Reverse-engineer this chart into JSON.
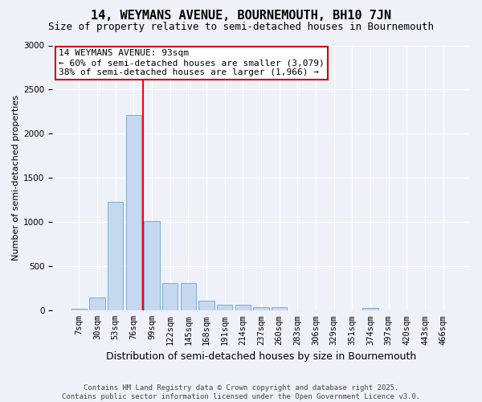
{
  "title": "14, WEYMANS AVENUE, BOURNEMOUTH, BH10 7JN",
  "subtitle": "Size of property relative to semi-detached houses in Bournemouth",
  "xlabel": "Distribution of semi-detached houses by size in Bournemouth",
  "ylabel": "Number of semi-detached properties",
  "bar_labels": [
    "7sqm",
    "30sqm",
    "53sqm",
    "76sqm",
    "99sqm",
    "122sqm",
    "145sqm",
    "168sqm",
    "191sqm",
    "214sqm",
    "237sqm",
    "260sqm",
    "283sqm",
    "306sqm",
    "329sqm",
    "351sqm",
    "374sqm",
    "397sqm",
    "420sqm",
    "443sqm",
    "466sqm"
  ],
  "bar_values": [
    20,
    150,
    1230,
    2210,
    1010,
    310,
    310,
    110,
    65,
    65,
    40,
    40,
    0,
    0,
    0,
    0,
    30,
    0,
    0,
    0,
    0
  ],
  "bar_color": "#c5d8f0",
  "bar_edgecolor": "#7aadd4",
  "red_line_x": 3.5,
  "annotation_text": "14 WEYMANS AVENUE: 93sqm\n← 60% of semi-detached houses are smaller (3,079)\n38% of semi-detached houses are larger (1,966) →",
  "annotation_box_color": "#ffffff",
  "annotation_border_color": "#cc0000",
  "ylim": [
    0,
    3000
  ],
  "yticks": [
    0,
    500,
    1000,
    1500,
    2000,
    2500,
    3000
  ],
  "footer": "Contains HM Land Registry data © Crown copyright and database right 2025.\nContains public sector information licensed under the Open Government Licence v3.0.",
  "background_color": "#eef2f8",
  "grid_color": "#ffffff",
  "title_fontsize": 11,
  "subtitle_fontsize": 9,
  "ylabel_fontsize": 8,
  "xlabel_fontsize": 9,
  "tick_fontsize": 7.5,
  "annotation_fontsize": 8,
  "footer_fontsize": 6.5
}
